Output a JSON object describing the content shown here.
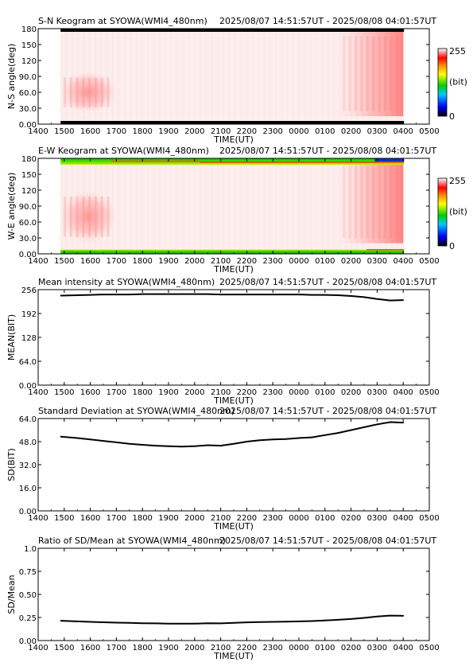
{
  "chart_data": [
    {
      "type": "heatmap",
      "title": "S-N Keogram at SYOWA(WMI4_480nm)",
      "subtitle": "2025/08/07 14:51:57UT - 2025/08/08 04:01:57UT",
      "xlabel": "TIME(UT)",
      "ylabel": "N-S angle(deg)",
      "xticks": [
        "1400",
        "1500",
        "1600",
        "1700",
        "1800",
        "1900",
        "2000",
        "2100",
        "2200",
        "2300",
        "0000",
        "0100",
        "0200",
        "0300",
        "0400",
        "0500"
      ],
      "yticks": [
        "0.00",
        "30.0",
        "60.0",
        "90.0",
        "120",
        "150",
        "180"
      ],
      "ylim": [
        0,
        180
      ],
      "colorbar": {
        "max_label": "255",
        "unit_label": "(bit)",
        "min_label": "0"
      },
      "bright_regions": [
        {
          "t_start": 14.85,
          "t_end": 17.0,
          "deg_start": 20,
          "deg_end": 100
        },
        {
          "t_start": 25.5,
          "t_end": 28.0,
          "deg_start": 15,
          "deg_end": 175
        }
      ],
      "dark_rows_deg": [
        [
          0,
          6
        ],
        [
          174,
          180
        ]
      ]
    },
    {
      "type": "heatmap",
      "title": "E-W Keogram at SYOWA(WMI4_480nm)",
      "subtitle": "2025/08/07 14:51:57UT - 2025/08/08 04:01:57UT",
      "xlabel": "TIME(UT)",
      "ylabel": "W-E angle(deg)",
      "xticks": [
        "1400",
        "1500",
        "1600",
        "1700",
        "1800",
        "1900",
        "2000",
        "2100",
        "2200",
        "2300",
        "0000",
        "0100",
        "0200",
        "0300",
        "0400",
        "0500"
      ],
      "yticks": [
        "0.00",
        "30.0",
        "60.0",
        "90.0",
        "120",
        "150",
        "180"
      ],
      "ylim": [
        0,
        180
      ],
      "colorbar": {
        "max_label": "255",
        "unit_label": "(bit)",
        "min_label": "0"
      },
      "bright_regions": [
        {
          "t_start": 14.85,
          "t_end": 17.0,
          "deg_start": 20,
          "deg_end": 120
        },
        {
          "t_start": 25.5,
          "t_end": 28.0,
          "deg_start": 20,
          "deg_end": 175
        }
      ],
      "edge_bands_deg": [
        [
          0,
          8
        ],
        [
          168,
          180
        ]
      ]
    },
    {
      "type": "line",
      "title": "Mean intensity at SYOWA(WMI4_480nm)",
      "subtitle": "2025/08/07 14:51:57UT - 2025/08/08 04:01:57UT",
      "xlabel": "TIME(UT)",
      "ylabel": "MEAN(BIT)",
      "xticks": [
        "1400",
        "1500",
        "1600",
        "1700",
        "1800",
        "1900",
        "2000",
        "2100",
        "2200",
        "2300",
        "0000",
        "0100",
        "0200",
        "0300",
        "0400",
        "0500"
      ],
      "yticks": [
        "0.00",
        "64.0",
        "128",
        "192",
        "256"
      ],
      "ylim": [
        0,
        256
      ],
      "series": [
        {
          "x": [
            14.87,
            15.5,
            16.0,
            16.5,
            17.0,
            17.5,
            18.0,
            18.5,
            19.0,
            19.5,
            20.0,
            20.5,
            21.0,
            21.5,
            22.0,
            22.5,
            23.0,
            23.5,
            24.0,
            24.5,
            25.0,
            25.5,
            26.0,
            26.5,
            27.0,
            27.5,
            28.0
          ],
          "y": [
            240,
            241,
            242,
            243,
            243,
            243,
            244,
            244,
            244,
            244,
            244,
            244,
            243,
            243,
            243,
            243,
            243,
            243,
            243,
            242,
            242,
            241,
            239,
            236,
            231,
            227,
            228
          ]
        }
      ]
    },
    {
      "type": "line",
      "title": "Standard Deviation at SYOWA(WMI4_480nm)",
      "subtitle": "2025/08/07 14:51:57UT - 2025/08/08 04:01:57UT",
      "xlabel": "TIME(UT)",
      "ylabel": "SD(BIT)",
      "xticks": [
        "1400",
        "1500",
        "1600",
        "1700",
        "1800",
        "1900",
        "2000",
        "2100",
        "2200",
        "2300",
        "0000",
        "0100",
        "0200",
        "0300",
        "0400",
        "0500"
      ],
      "yticks": [
        "0.00",
        "16.0",
        "32.0",
        "48.0",
        "64.0"
      ],
      "ylim": [
        0,
        64
      ],
      "series": [
        {
          "x": [
            14.87,
            15.5,
            16.0,
            16.5,
            17.0,
            17.5,
            18.0,
            18.5,
            19.0,
            19.5,
            20.0,
            20.5,
            21.0,
            21.5,
            22.0,
            22.5,
            23.0,
            23.5,
            24.0,
            24.5,
            25.0,
            25.5,
            26.0,
            26.5,
            27.0,
            27.5,
            28.0
          ],
          "y": [
            51.5,
            50.5,
            49.5,
            48.5,
            47.5,
            46.5,
            45.8,
            45.2,
            44.8,
            44.5,
            44.8,
            45.5,
            45.2,
            46.5,
            48.0,
            49.0,
            49.5,
            49.8,
            50.5,
            51.0,
            52.5,
            54.0,
            56.0,
            58.0,
            60.0,
            61.5,
            61.2
          ]
        }
      ]
    },
    {
      "type": "line",
      "title": "Ratio of SD/Mean at SYOWA(WMI4_480nm)",
      "subtitle": "2025/08/07 14:51:57UT - 2025/08/08 04:01:57UT",
      "xlabel": "TIME(UT)",
      "ylabel": "SD/Mean",
      "xticks": [
        "1400",
        "1500",
        "1600",
        "1700",
        "1800",
        "1900",
        "2000",
        "2100",
        "2200",
        "2300",
        "0000",
        "0100",
        "0200",
        "0300",
        "0400",
        "0500"
      ],
      "yticks": [
        "0.00",
        "0.25",
        "0.50",
        "0.75",
        "1.0"
      ],
      "ylim": [
        0,
        1
      ],
      "series": [
        {
          "x": [
            14.87,
            15.5,
            16.0,
            16.5,
            17.0,
            17.5,
            18.0,
            18.5,
            19.0,
            19.5,
            20.0,
            20.5,
            21.0,
            21.5,
            22.0,
            22.5,
            23.0,
            23.5,
            24.0,
            24.5,
            25.0,
            25.5,
            26.0,
            26.5,
            27.0,
            27.5,
            28.0
          ],
          "y": [
            0.215,
            0.208,
            0.203,
            0.198,
            0.194,
            0.191,
            0.188,
            0.186,
            0.184,
            0.183,
            0.184,
            0.187,
            0.186,
            0.191,
            0.197,
            0.201,
            0.203,
            0.205,
            0.208,
            0.211,
            0.217,
            0.225,
            0.234,
            0.246,
            0.26,
            0.271,
            0.268
          ]
        }
      ]
    }
  ]
}
